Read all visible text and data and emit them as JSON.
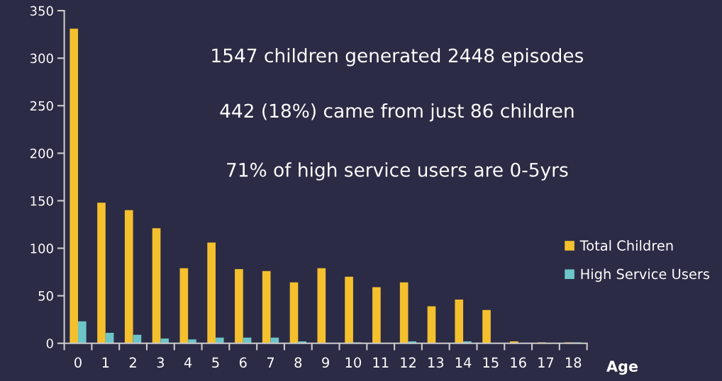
{
  "chart_data": {
    "type": "bar",
    "xlabel": "Age",
    "categories": [
      "0",
      "1",
      "2",
      "3",
      "4",
      "5",
      "6",
      "7",
      "8",
      "9",
      "10",
      "11",
      "12",
      "13",
      "14",
      "15",
      "16",
      "17",
      "18"
    ],
    "series": [
      {
        "name": "Total Children",
        "color": "#f5c02e",
        "values": [
          331,
          148,
          140,
          121,
          79,
          106,
          78,
          76,
          64,
          79,
          70,
          59,
          64,
          39,
          46,
          35,
          2,
          1,
          1
        ]
      },
      {
        "name": "High Service Users",
        "color": "#6cc5c8",
        "values": [
          23,
          11,
          9,
          5,
          4,
          6,
          6,
          6,
          2,
          0,
          1,
          0,
          2,
          0,
          2,
          0,
          0,
          0,
          1
        ]
      }
    ],
    "ylim": [
      0,
      350
    ],
    "yticks": [
      0,
      50,
      100,
      150,
      200,
      250,
      300,
      350
    ],
    "grid": false,
    "legend": "right",
    "annotations": [
      "1547 children generated 2448 episodes",
      "442 (18%) came from just 86 children",
      "71% of high service users are 0-5yrs"
    ]
  }
}
